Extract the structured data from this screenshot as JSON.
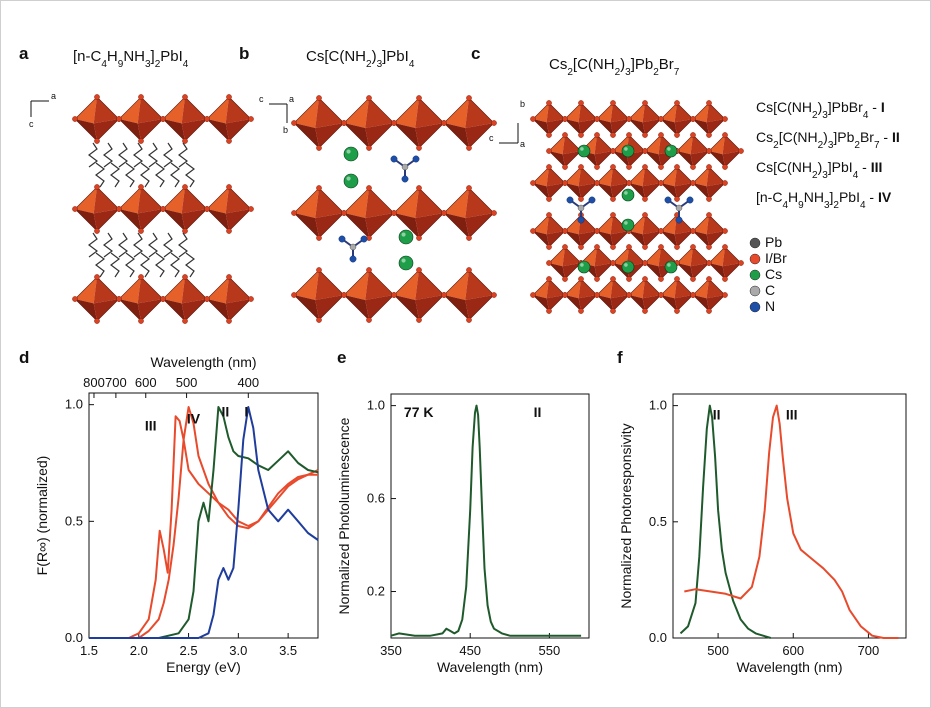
{
  "colors": {
    "red": "#e84a2c",
    "green": "#1f5a2c",
    "blue": "#1f3d9c",
    "oct_light": "#e6602a",
    "oct_dark": "#7f1f10",
    "oct_mid": "#b8381b",
    "cs": "#1e9e48",
    "n": "#1e4fa8",
    "pb": "#555555",
    "c": "#aaaaaa"
  },
  "panels": {
    "a": {
      "label": "a",
      "title_parts": [
        "[n-C",
        "4",
        "H",
        "9",
        "NH",
        "3",
        "]",
        "2",
        "PbI",
        "4"
      ],
      "axis_a": "a",
      "axis_c": "c"
    },
    "b": {
      "label": "b",
      "title_parts": [
        "Cs[C(NH",
        "2",
        ")",
        "3",
        "]PbI",
        "4"
      ],
      "axis_c": "c",
      "axis_a": "a",
      "axis_b": "b"
    },
    "c": {
      "label": "c",
      "title_parts": [
        "Cs",
        "2",
        "[C(NH",
        "2",
        ")",
        "3",
        "]Pb",
        "2",
        "Br",
        "7"
      ],
      "axis_b": "b",
      "axis_c": "c",
      "axis_a": "a"
    },
    "d": {
      "label": "d"
    },
    "e": {
      "label": "e"
    },
    "f": {
      "label": "f"
    }
  },
  "legend": {
    "compounds": [
      {
        "parts": [
          "Cs[C(NH",
          "2",
          ")",
          "3",
          "]PbBr",
          "4",
          " - "
        ],
        "roman": "I"
      },
      {
        "parts": [
          "Cs",
          "2",
          "[C(NH",
          "2",
          ")",
          "3",
          "]Pb",
          "2",
          "Br",
          "7",
          " - "
        ],
        "roman": "II"
      },
      {
        "parts": [
          "Cs[C(NH",
          "2",
          ")",
          "3",
          "]PbI",
          "4",
          " - "
        ],
        "roman": "III"
      },
      {
        "parts": [
          "[n-C",
          "4",
          "H",
          "9",
          "NH",
          "3",
          "]",
          "2",
          "PbI",
          "4",
          " - "
        ],
        "roman": "IV"
      }
    ],
    "atoms": [
      {
        "name": "Pb",
        "color": "#555555"
      },
      {
        "name": "I/Br",
        "color": "#e84a2c"
      },
      {
        "name": "Cs",
        "color": "#1e9e48"
      },
      {
        "name": "C",
        "color": "#aaaaaa"
      },
      {
        "name": "N",
        "color": "#1e4fa8"
      }
    ]
  },
  "chart_data": [
    {
      "id": "d",
      "type": "line",
      "xlabel": "Energy (eV)",
      "ylabel": "F(R∞) (normalized)",
      "top_axis_label": "Wavelength (nm)",
      "xlim": [
        1.5,
        3.8
      ],
      "ylim": [
        0.0,
        1.05
      ],
      "xticks": [
        "1.5",
        "2.0",
        "2.5",
        "3.0",
        "3.5"
      ],
      "xtick_values": [
        1.5,
        2.0,
        2.5,
        3.0,
        3.5
      ],
      "yticks": [
        "0.0",
        "0.5",
        "1.0"
      ],
      "ytick_values": [
        0.0,
        0.5,
        1.0
      ],
      "top_ticks": [
        "800",
        "700",
        "600",
        "500",
        "400"
      ],
      "top_tick_values": [
        1.55,
        1.77,
        2.07,
        2.48,
        3.1
      ],
      "annotations": [
        {
          "text": "III",
          "x": 2.12,
          "y": 0.89
        },
        {
          "text": "IV",
          "x": 2.55,
          "y": 0.92
        },
        {
          "text": "II",
          "x": 2.87,
          "y": 0.95
        },
        {
          "text": "I",
          "x": 3.08,
          "y": 0.95
        }
      ],
      "series": [
        {
          "color": "#e84a2c",
          "x": [
            1.5,
            1.9,
            2.0,
            2.1,
            2.17,
            2.21,
            2.25,
            2.29,
            2.33,
            2.37,
            2.41,
            2.45,
            2.5,
            2.6,
            2.7,
            2.8,
            2.9,
            3.0,
            3.1,
            3.2,
            3.3,
            3.4,
            3.5,
            3.6,
            3.7,
            3.8
          ],
          "y": [
            0.0,
            0.0,
            0.02,
            0.08,
            0.25,
            0.46,
            0.38,
            0.28,
            0.55,
            0.95,
            0.93,
            0.85,
            0.72,
            0.66,
            0.62,
            0.58,
            0.55,
            0.5,
            0.48,
            0.5,
            0.55,
            0.6,
            0.65,
            0.68,
            0.7,
            0.72
          ]
        },
        {
          "color": "#e84a2c",
          "x": [
            1.5,
            2.0,
            2.1,
            2.2,
            2.25,
            2.3,
            2.35,
            2.4,
            2.45,
            2.5,
            2.55,
            2.6,
            2.7,
            2.8,
            2.9,
            3.0,
            3.1,
            3.2,
            3.3,
            3.4,
            3.5,
            3.6,
            3.7,
            3.8
          ],
          "y": [
            0.0,
            0.0,
            0.03,
            0.08,
            0.15,
            0.25,
            0.4,
            0.6,
            0.85,
            0.99,
            0.92,
            0.78,
            0.66,
            0.58,
            0.52,
            0.48,
            0.47,
            0.5,
            0.56,
            0.62,
            0.66,
            0.69,
            0.7,
            0.7
          ]
        },
        {
          "color": "#1f5a2c",
          "x": [
            1.5,
            2.2,
            2.4,
            2.5,
            2.55,
            2.6,
            2.65,
            2.7,
            2.75,
            2.8,
            2.85,
            2.9,
            2.95,
            3.0,
            3.1,
            3.2,
            3.3,
            3.4,
            3.5,
            3.6,
            3.7,
            3.8
          ],
          "y": [
            0.0,
            0.0,
            0.02,
            0.08,
            0.2,
            0.5,
            0.58,
            0.5,
            0.72,
            0.99,
            0.95,
            0.86,
            0.8,
            0.78,
            0.77,
            0.74,
            0.72,
            0.76,
            0.8,
            0.75,
            0.72,
            0.71
          ]
        },
        {
          "color": "#1f3d9c",
          "x": [
            1.5,
            2.6,
            2.7,
            2.75,
            2.8,
            2.85,
            2.9,
            2.95,
            3.0,
            3.05,
            3.1,
            3.15,
            3.2,
            3.3,
            3.4,
            3.5,
            3.6,
            3.7,
            3.8
          ],
          "y": [
            0.0,
            0.0,
            0.02,
            0.1,
            0.25,
            0.3,
            0.25,
            0.3,
            0.55,
            0.85,
            0.99,
            0.9,
            0.72,
            0.55,
            0.5,
            0.55,
            0.5,
            0.45,
            0.42
          ]
        }
      ]
    },
    {
      "id": "e",
      "type": "line",
      "xlabel": "Wavelength (nm)",
      "ylabel": "Normalized Photoluminescence",
      "xlim": [
        350,
        600
      ],
      "ylim": [
        0.0,
        1.05
      ],
      "xticks": [
        "350",
        "450",
        "550"
      ],
      "xtick_values": [
        350,
        450,
        550
      ],
      "yticks": [
        "0.2",
        "0.6",
        "1.0"
      ],
      "ytick_values": [
        0.2,
        0.6,
        1.0
      ],
      "annotations": [
        {
          "text": "77 K",
          "x": 385,
          "y": 0.95,
          "bold": false
        },
        {
          "text": "II",
          "x": 535,
          "y": 0.95,
          "bold": true
        }
      ],
      "series": [
        {
          "color": "#1f5a2c",
          "x": [
            350,
            360,
            380,
            400,
            415,
            420,
            425,
            430,
            435,
            440,
            445,
            450,
            453,
            456,
            458,
            460,
            462,
            465,
            468,
            472,
            476,
            480,
            490,
            500,
            520,
            550,
            590
          ],
          "y": [
            0.01,
            0.02,
            0.01,
            0.01,
            0.02,
            0.04,
            0.03,
            0.02,
            0.03,
            0.08,
            0.22,
            0.55,
            0.82,
            0.97,
            1.0,
            0.96,
            0.82,
            0.55,
            0.3,
            0.14,
            0.07,
            0.04,
            0.02,
            0.01,
            0.01,
            0.01,
            0.01
          ]
        }
      ]
    },
    {
      "id": "f",
      "type": "line",
      "xlabel": "Wavelength (nm)",
      "ylabel": "Normalized Photoresponsivity",
      "xlim": [
        440,
        750
      ],
      "ylim": [
        0.0,
        1.05
      ],
      "xticks": [
        "500",
        "600",
        "700"
      ],
      "xtick_values": [
        500,
        600,
        700
      ],
      "yticks": [
        "0.0",
        "0.5",
        "1.0"
      ],
      "ytick_values": [
        0.0,
        0.5,
        1.0
      ],
      "annotations": [
        {
          "text": "II",
          "x": 498,
          "y": 0.94
        },
        {
          "text": "III",
          "x": 598,
          "y": 0.94
        }
      ],
      "series": [
        {
          "color": "#1f5a2c",
          "x": [
            450,
            460,
            470,
            475,
            480,
            485,
            489,
            492,
            496,
            500,
            505,
            510,
            520,
            530,
            540,
            550,
            560,
            570
          ],
          "y": [
            0.02,
            0.05,
            0.15,
            0.35,
            0.65,
            0.9,
            1.0,
            0.95,
            0.78,
            0.55,
            0.38,
            0.28,
            0.16,
            0.08,
            0.04,
            0.02,
            0.01,
            0.0
          ]
        },
        {
          "color": "#e84a2c",
          "x": [
            455,
            470,
            490,
            510,
            530,
            545,
            555,
            562,
            568,
            573,
            578,
            582,
            586,
            592,
            600,
            610,
            625,
            640,
            655,
            665,
            675,
            690,
            705,
            720,
            740
          ],
          "y": [
            0.2,
            0.21,
            0.2,
            0.19,
            0.17,
            0.22,
            0.35,
            0.55,
            0.8,
            0.95,
            1.0,
            0.92,
            0.78,
            0.6,
            0.45,
            0.38,
            0.34,
            0.3,
            0.25,
            0.2,
            0.12,
            0.05,
            0.01,
            0.0,
            0.0
          ]
        }
      ]
    }
  ]
}
